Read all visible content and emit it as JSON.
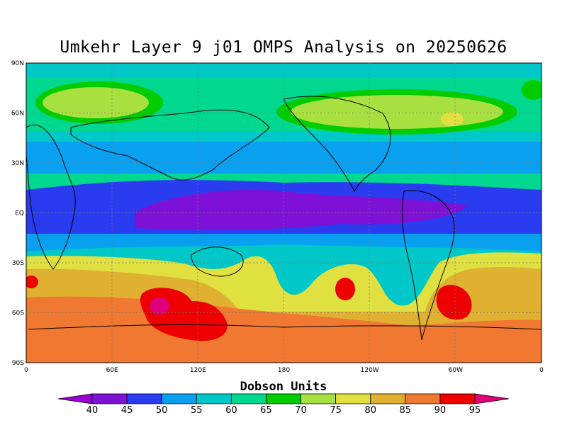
{
  "title": "Umkehr Layer 9 j01 OMPS Analysis on 20250626",
  "colorbar": {
    "title": "Dobson Units",
    "labels": [
      "40",
      "45",
      "50",
      "55",
      "60",
      "65",
      "70",
      "75",
      "80",
      "85",
      "90",
      "95"
    ],
    "colors": [
      "#9a00d4",
      "#7d12d6",
      "#2a3cf0",
      "#0aa0f0",
      "#00c8c8",
      "#00d890",
      "#00cc00",
      "#a8e040",
      "#e0e040",
      "#e0b030",
      "#f07830",
      "#ee0000",
      "#e0007a"
    ]
  },
  "axes": {
    "lat_labels": [
      "90N",
      "60N",
      "30N",
      "EQ",
      "30S",
      "60S",
      "90S"
    ],
    "lon_labels": [
      "0",
      "60E",
      "120E",
      "180",
      "120W",
      "60W",
      "0"
    ]
  }
}
